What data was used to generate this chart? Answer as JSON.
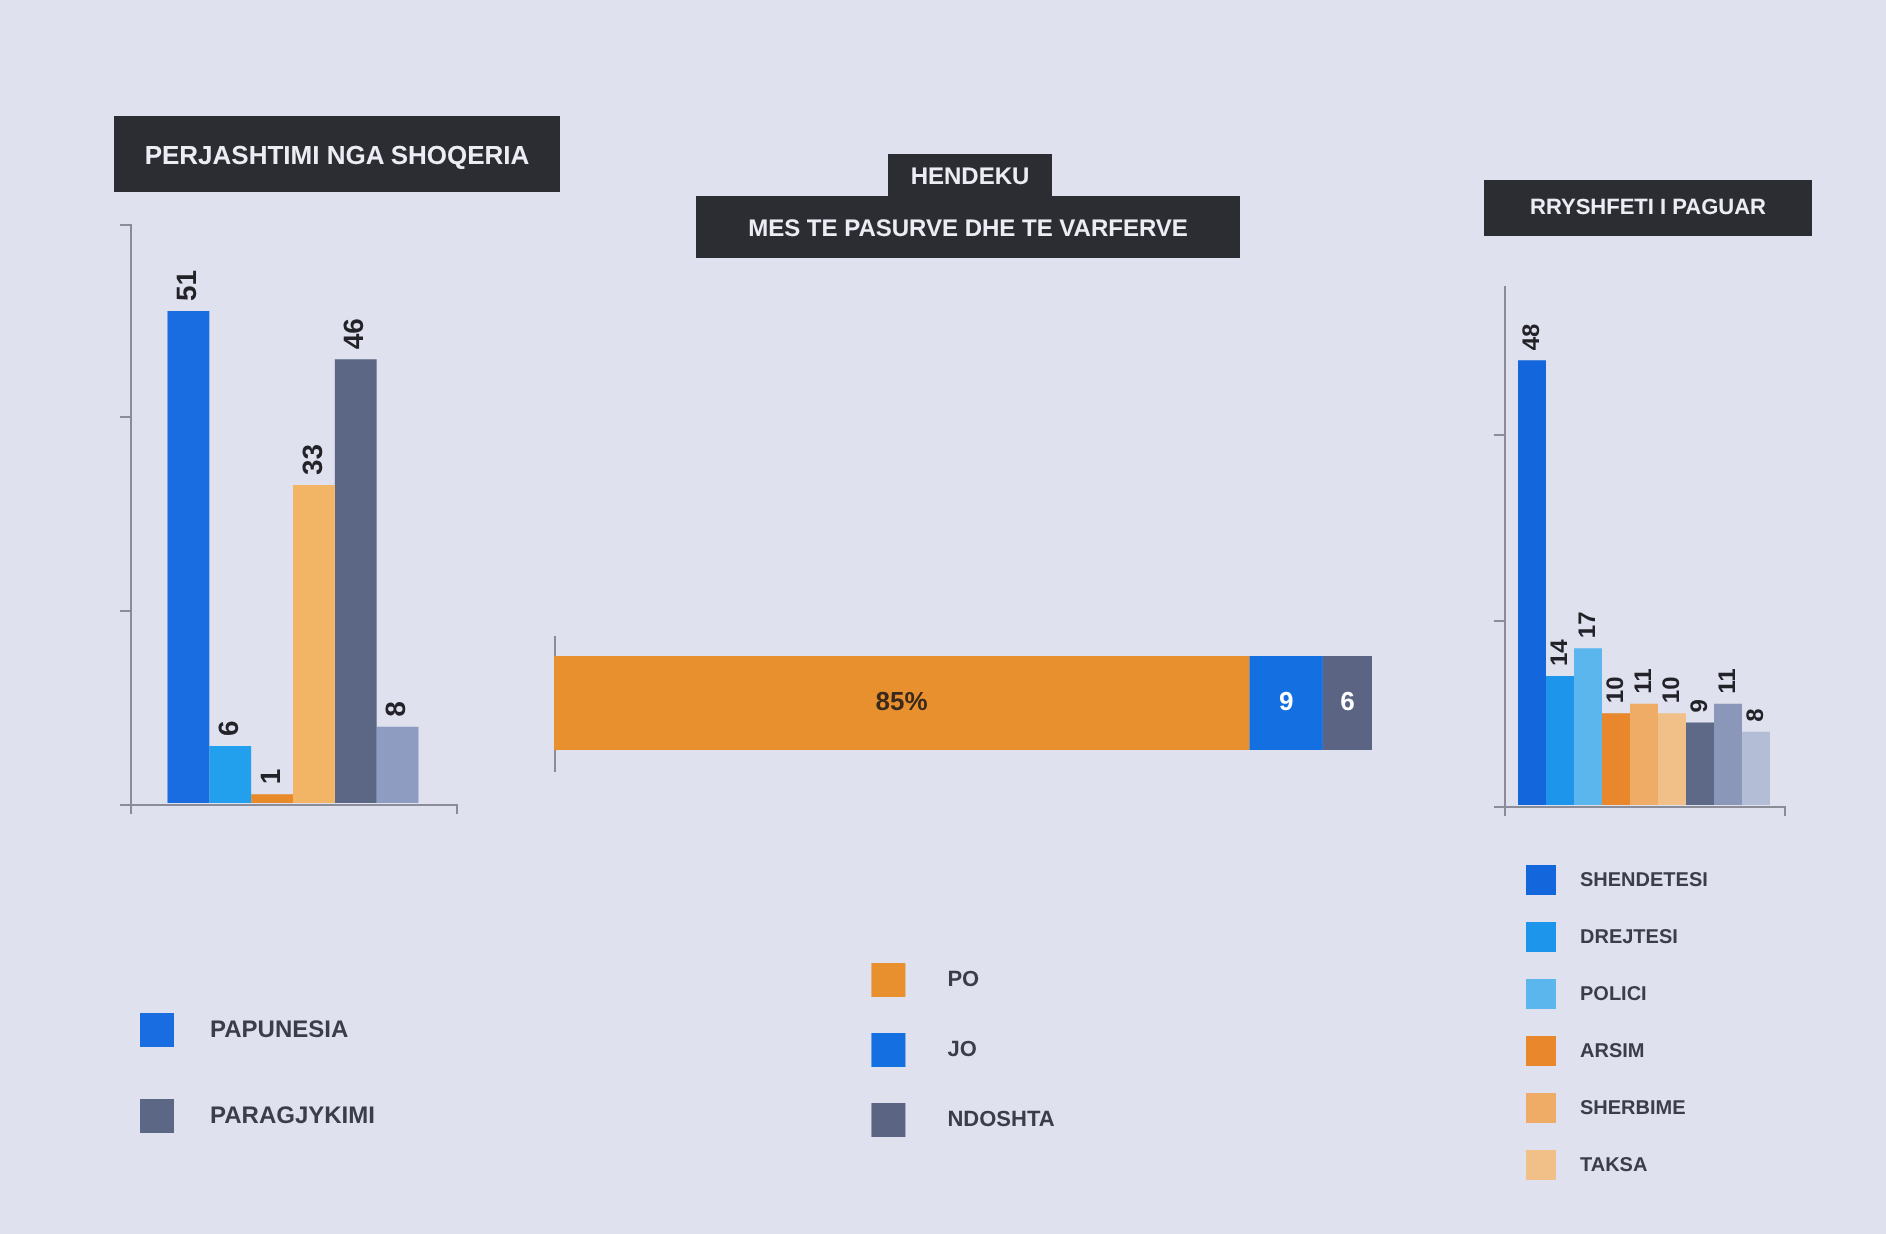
{
  "chart_data": [
    {
      "type": "bar",
      "title": "PERJASHTIMI NGA SHOQERIA",
      "categories": [
        null
      ],
      "series": [
        {
          "name": "PAPUNESIA",
          "color": "#1a6de0",
          "values": [
            51
          ]
        },
        {
          "color": "#22a0ee",
          "values": [
            6
          ]
        },
        {
          "color": "#e8892a",
          "values": [
            1
          ]
        },
        {
          "color": "#f2b565",
          "values": [
            33
          ]
        },
        {
          "name": "PARAGJYKIMI",
          "color": "#5b6785",
          "values": [
            46
          ]
        },
        {
          "color": "#8d9cc0",
          "values": [
            8
          ]
        }
      ],
      "ylim": [
        0,
        60
      ],
      "yticks": [
        {
          "value": 0,
          "label": null
        },
        {
          "value": 20,
          "label": null
        },
        {
          "value": 40,
          "label": null
        },
        {
          "value": 60,
          "label": null
        }
      ],
      "tick_labels": false,
      "grid": false,
      "legend": "bottom left",
      "data_labels": true
    },
    {
      "type": "bar",
      "orientation": "horizontal",
      "stacked": true,
      "title": "HENDEKU",
      "subtitle": "MES TE PASURVE DHE TE VARFERVE",
      "categories": [
        null
      ],
      "series": [
        {
          "name": "PO",
          "color": "#e8902e",
          "values": [
            85
          ],
          "value_labels": [
            "85%"
          ]
        },
        {
          "name": "JO",
          "color": "#1470e0",
          "values": [
            9
          ],
          "value_labels": [
            "9"
          ]
        },
        {
          "name": "NDOSHTA",
          "color": "#5b6583",
          "values": [
            6
          ],
          "value_labels": [
            "6"
          ]
        }
      ],
      "xlim": [
        0,
        100
      ],
      "tick_labels": false,
      "grid": false,
      "legend": "bottom"
    },
    {
      "type": "bar",
      "title": "RRYSHFETI I PAGUAR",
      "categories": [
        null
      ],
      "series": [
        {
          "name": "SHENDETESI",
          "color": "#1466dc",
          "values": [
            48
          ]
        },
        {
          "name": "DREJTESI",
          "color": "#1d95ea",
          "values": [
            14
          ]
        },
        {
          "name": "POLICI",
          "color": "#5cb6ee",
          "values": [
            17
          ]
        },
        {
          "name": "ARSIM",
          "color": "#e8872c",
          "values": [
            10
          ]
        },
        {
          "name": "SHERBIME",
          "color": "#eeac66",
          "values": [
            11
          ]
        },
        {
          "name": "TAKSA",
          "color": "#f0c088",
          "values": [
            10
          ]
        },
        {
          "color": "#5d6987",
          "values": [
            9
          ]
        },
        {
          "color": "#8b97b8",
          "values": [
            11
          ]
        },
        {
          "color": "#b3bdd6",
          "values": [
            8
          ]
        }
      ],
      "ylim": [
        0,
        56
      ],
      "yticks": [
        {
          "value": 0,
          "label": null
        },
        {
          "value": 20,
          "label": null
        },
        {
          "value": 40,
          "label": null
        }
      ],
      "tick_labels": false,
      "grid": false,
      "legend": "bottom left",
      "data_labels": true
    }
  ]
}
